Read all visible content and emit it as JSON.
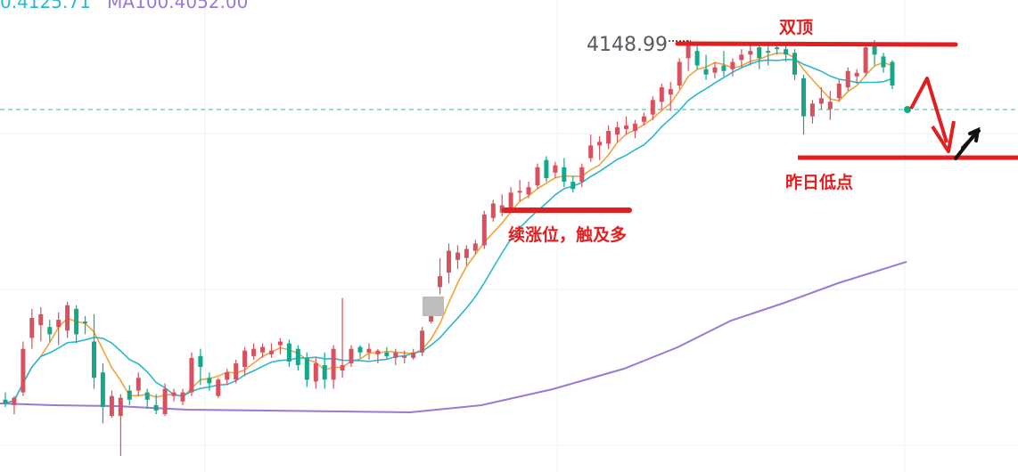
{
  "legend": {
    "ma_a": "0.4125.71",
    "ma_b": "MA100.4052.00"
  },
  "price_label": "4148.99",
  "annotations": {
    "double_top": "双顶",
    "continuation": "续涨位，触及多",
    "yesterday_low": "昨日低点"
  },
  "colors": {
    "up": "#d9505f",
    "down": "#14a789",
    "ma_fast": "#f2a33a",
    "ma_mid": "#2ab7cf",
    "ma_slow": "#9a7ad6",
    "annotation": "#e31e1e",
    "dashed_level": "#39b89a",
    "grid": "#eef0f3"
  },
  "chart_data": {
    "type": "candlestick",
    "y_axis": "price, unlabeled",
    "current_price_level": "dashed horizontal line",
    "candles": [
      {
        "o": 4032,
        "h": 4036,
        "l": 4028,
        "c": 4030
      },
      {
        "o": 4029,
        "h": 4034,
        "l": 4024,
        "c": 4033
      },
      {
        "o": 4036,
        "h": 4064,
        "l": 4034,
        "c": 4060
      },
      {
        "o": 4066,
        "h": 4082,
        "l": 4060,
        "c": 4077
      },
      {
        "o": 4073,
        "h": 4083,
        "l": 4064,
        "c": 4079
      },
      {
        "o": 4072,
        "h": 4076,
        "l": 4064,
        "c": 4068
      },
      {
        "o": 4072,
        "h": 4080,
        "l": 4062,
        "c": 4076
      },
      {
        "o": 4070,
        "h": 4086,
        "l": 4066,
        "c": 4084
      },
      {
        "o": 4082,
        "h": 4084,
        "l": 4063,
        "c": 4068
      },
      {
        "o": 4075,
        "h": 4078,
        "l": 4068,
        "c": 4074
      },
      {
        "o": 4064,
        "h": 4079,
        "l": 4038,
        "c": 4044
      },
      {
        "o": 4047,
        "h": 4052,
        "l": 4019,
        "c": 4028
      },
      {
        "o": 4023,
        "h": 4037,
        "l": 4022,
        "c": 4034
      },
      {
        "o": 4023,
        "h": 4035,
        "l": 4001,
        "c": 4033
      },
      {
        "o": 4037,
        "h": 4040,
        "l": 4029,
        "c": 4032
      },
      {
        "o": 4037,
        "h": 4047,
        "l": 4034,
        "c": 4044
      },
      {
        "o": 4036,
        "h": 4038,
        "l": 4027,
        "c": 4032
      },
      {
        "o": 4029,
        "h": 4035,
        "l": 4024,
        "c": 4026
      },
      {
        "o": 4024,
        "h": 4041,
        "l": 4023,
        "c": 4038
      },
      {
        "o": 4034,
        "h": 4038,
        "l": 4031,
        "c": 4036
      },
      {
        "o": 4031,
        "h": 4038,
        "l": 4029,
        "c": 4036
      },
      {
        "o": 4036,
        "h": 4058,
        "l": 4034,
        "c": 4055
      },
      {
        "o": 4056,
        "h": 4060,
        "l": 4040,
        "c": 4050
      },
      {
        "o": 4044,
        "h": 4047,
        "l": 4037,
        "c": 4041
      },
      {
        "o": 4034,
        "h": 4044,
        "l": 4033,
        "c": 4043
      },
      {
        "o": 4043,
        "h": 4049,
        "l": 4040,
        "c": 4047
      },
      {
        "o": 4043,
        "h": 4054,
        "l": 4041,
        "c": 4052
      },
      {
        "o": 4050,
        "h": 4061,
        "l": 4045,
        "c": 4059
      },
      {
        "o": 4056,
        "h": 4063,
        "l": 4054,
        "c": 4060
      },
      {
        "o": 4058,
        "h": 4063,
        "l": 4055,
        "c": 4061
      },
      {
        "o": 4057,
        "h": 4063,
        "l": 4055,
        "c": 4059
      },
      {
        "o": 4062,
        "h": 4066,
        "l": 4057,
        "c": 4064
      },
      {
        "o": 4063,
        "h": 4065,
        "l": 4050,
        "c": 4053
      },
      {
        "o": 4060,
        "h": 4062,
        "l": 4048,
        "c": 4051
      },
      {
        "o": 4055,
        "h": 4058,
        "l": 4039,
        "c": 4043
      },
      {
        "o": 4042,
        "h": 4055,
        "l": 4038,
        "c": 4052
      },
      {
        "o": 4051,
        "h": 4058,
        "l": 4038,
        "c": 4043
      },
      {
        "o": 4043,
        "h": 4062,
        "l": 4038,
        "c": 4060
      },
      {
        "o": 4048,
        "h": 4088,
        "l": 4044,
        "c": 4051
      },
      {
        "o": 4052,
        "h": 4062,
        "l": 4050,
        "c": 4060
      },
      {
        "o": 4061,
        "h": 4062,
        "l": 4055,
        "c": 4058
      },
      {
        "o": 4058,
        "h": 4063,
        "l": 4054,
        "c": 4060
      },
      {
        "o": 4057,
        "h": 4060,
        "l": 4052,
        "c": 4059
      },
      {
        "o": 4058,
        "h": 4061,
        "l": 4054,
        "c": 4056
      },
      {
        "o": 4055,
        "h": 4060,
        "l": 4051,
        "c": 4058
      },
      {
        "o": 4055,
        "h": 4059,
        "l": 4052,
        "c": 4056
      },
      {
        "o": 4055,
        "h": 4060,
        "l": 4054,
        "c": 4058
      },
      {
        "o": 4058,
        "h": 4072,
        "l": 4056,
        "c": 4070
      },
      {
        "o": 4075,
        "h": 4088,
        "l": 4074,
        "c": 4085
      },
      {
        "o": 4094,
        "h": 4110,
        "l": 4090,
        "c": 4100
      },
      {
        "o": 4102,
        "h": 4118,
        "l": 4096,
        "c": 4114
      },
      {
        "o": 4109,
        "h": 4117,
        "l": 4104,
        "c": 4113
      },
      {
        "o": 4110,
        "h": 4117,
        "l": 4106,
        "c": 4115
      },
      {
        "o": 4114,
        "h": 4120,
        "l": 4112,
        "c": 4118
      },
      {
        "o": 4117,
        "h": 4136,
        "l": 4115,
        "c": 4134
      },
      {
        "o": 4132,
        "h": 4142,
        "l": 4130,
        "c": 4140
      },
      {
        "o": 4135,
        "h": 4145,
        "l": 4133,
        "c": 4139
      },
      {
        "o": 4137,
        "h": 4149,
        "l": 4135,
        "c": 4146
      },
      {
        "o": 4146,
        "h": 4153,
        "l": 4141,
        "c": 4147
      },
      {
        "o": 4145,
        "h": 4152,
        "l": 4143,
        "c": 4149
      },
      {
        "o": 4150,
        "h": 4162,
        "l": 4148,
        "c": 4160
      },
      {
        "o": 4164,
        "h": 4166,
        "l": 4152,
        "c": 4154
      },
      {
        "o": 4157,
        "h": 4163,
        "l": 4154,
        "c": 4161
      },
      {
        "o": 4160,
        "h": 4165,
        "l": 4149,
        "c": 4152
      },
      {
        "o": 4152,
        "h": 4155,
        "l": 4146,
        "c": 4148
      },
      {
        "o": 4152,
        "h": 4162,
        "l": 4149,
        "c": 4160
      },
      {
        "o": 4165,
        "h": 4178,
        "l": 4163,
        "c": 4172
      },
      {
        "o": 4172,
        "h": 4177,
        "l": 4164,
        "c": 4174
      },
      {
        "o": 4173,
        "h": 4183,
        "l": 4170,
        "c": 4180
      },
      {
        "o": 4178,
        "h": 4185,
        "l": 4174,
        "c": 4182
      },
      {
        "o": 4181,
        "h": 4188,
        "l": 4178,
        "c": 4183
      },
      {
        "o": 4180,
        "h": 4186,
        "l": 4176,
        "c": 4184
      },
      {
        "o": 4185,
        "h": 4190,
        "l": 4183,
        "c": 4188
      },
      {
        "o": 4189,
        "h": 4199,
        "l": 4186,
        "c": 4197
      },
      {
        "o": 4196,
        "h": 4206,
        "l": 4192,
        "c": 4204
      },
      {
        "o": 4200,
        "h": 4207,
        "l": 4191,
        "c": 4203
      },
      {
        "o": 4205,
        "h": 4220,
        "l": 4203,
        "c": 4218
      },
      {
        "o": 4220,
        "h": 4230,
        "l": 4213,
        "c": 4228
      },
      {
        "o": 4224,
        "h": 4228,
        "l": 4214,
        "c": 4216
      },
      {
        "o": 4214,
        "h": 4222,
        "l": 4208,
        "c": 4211
      },
      {
        "o": 4212,
        "h": 4218,
        "l": 4209,
        "c": 4215
      },
      {
        "o": 4216,
        "h": 4224,
        "l": 4210,
        "c": 4213
      },
      {
        "o": 4214,
        "h": 4220,
        "l": 4210,
        "c": 4218
      },
      {
        "o": 4219,
        "h": 4225,
        "l": 4215,
        "c": 4222
      },
      {
        "o": 4222,
        "h": 4228,
        "l": 4216,
        "c": 4224
      },
      {
        "o": 4226,
        "h": 4228,
        "l": 4214,
        "c": 4220
      },
      {
        "o": 4224,
        "h": 4227,
        "l": 4216,
        "c": 4223
      },
      {
        "o": 4226,
        "h": 4228,
        "l": 4222,
        "c": 4225
      },
      {
        "o": 4225,
        "h": 4227,
        "l": 4218,
        "c": 4222
      },
      {
        "o": 4223,
        "h": 4225,
        "l": 4208,
        "c": 4211
      },
      {
        "o": 4209,
        "h": 4211,
        "l": 4178,
        "c": 4188
      },
      {
        "o": 4188,
        "h": 4197,
        "l": 4184,
        "c": 4195
      },
      {
        "o": 4195,
        "h": 4204,
        "l": 4192,
        "c": 4198
      },
      {
        "o": 4192,
        "h": 4202,
        "l": 4186,
        "c": 4196
      },
      {
        "o": 4198,
        "h": 4208,
        "l": 4196,
        "c": 4206
      },
      {
        "o": 4204,
        "h": 4215,
        "l": 4202,
        "c": 4213
      },
      {
        "o": 4210,
        "h": 4214,
        "l": 4206,
        "c": 4212
      },
      {
        "o": 4212,
        "h": 4228,
        "l": 4210,
        "c": 4226
      },
      {
        "o": 4228,
        "h": 4230,
        "l": 4216,
        "c": 4222
      },
      {
        "o": 4221,
        "h": 4223,
        "l": 4212,
        "c": 4215
      },
      {
        "o": 4218,
        "h": 4219,
        "l": 4203,
        "c": 4205
      }
    ]
  }
}
